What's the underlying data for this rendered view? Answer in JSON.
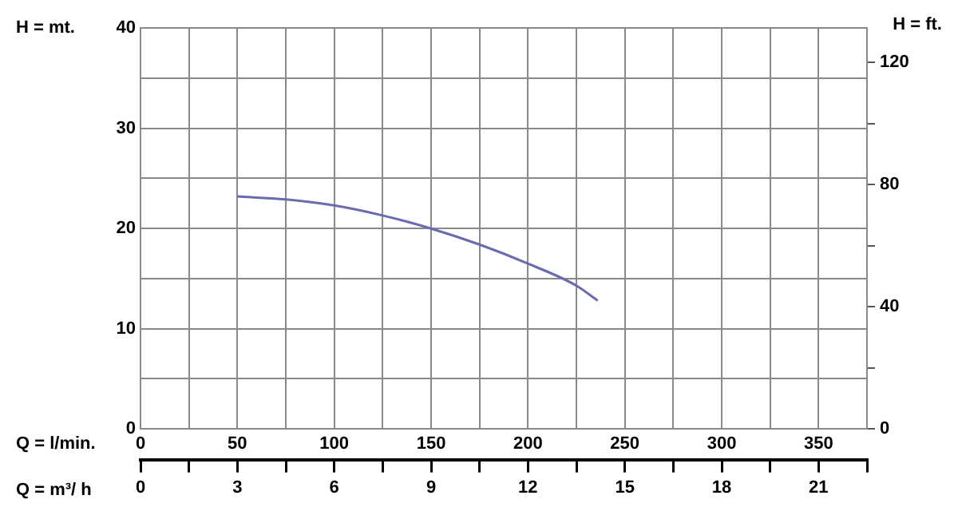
{
  "chart_data": {
    "type": "line",
    "xlabel": "Q = l/min.",
    "x2label": "Q = m³/ h",
    "ylabel": "H = mt.",
    "y2label": "H = ft.",
    "x": [
      50,
      75,
      100,
      125,
      150,
      175,
      200,
      225,
      236
    ],
    "series": [
      {
        "color": "#6a6aae",
        "values": [
          23.2,
          22.9,
          22.3,
          21.3,
          20,
          18.4,
          16.5,
          14.3,
          12.8
        ]
      }
    ],
    "xlim": [
      0,
      375
    ],
    "xticks": [
      0,
      {
        "value": 25,
        "label": null
      },
      50,
      {
        "value": 75,
        "label": null
      },
      100,
      {
        "value": 125,
        "label": null
      },
      150,
      {
        "value": 175,
        "label": null
      },
      200,
      {
        "value": 225,
        "label": null
      },
      250,
      {
        "value": 275,
        "label": null
      },
      300,
      {
        "value": 325,
        "label": null
      },
      350,
      {
        "value": 375,
        "label": null
      }
    ],
    "x2lim": [
      0,
      22.5
    ],
    "x2ticks": [
      0,
      {
        "value": 1.5,
        "label": null
      },
      3,
      {
        "value": 4.5,
        "label": null
      },
      6,
      {
        "value": 7.5,
        "label": null
      },
      9,
      {
        "value": 10.5,
        "label": null
      },
      12,
      {
        "value": 13.5,
        "label": null
      },
      15,
      {
        "value": 16.5,
        "label": null
      },
      18,
      {
        "value": 19.5,
        "label": null
      },
      21,
      {
        "value": 22.5,
        "label": null
      }
    ],
    "ylim": [
      0,
      40
    ],
    "yticks": [
      0,
      {
        "value": 5,
        "label": null
      },
      10,
      {
        "value": 15,
        "label": null
      },
      20,
      {
        "value": 25,
        "label": null
      },
      30,
      {
        "value": 35,
        "label": null
      },
      40
    ],
    "y2lim": [
      0,
      131.2
    ],
    "y2ticks": [
      0,
      {
        "value": 20,
        "label": null
      },
      40,
      {
        "value": 60,
        "label": null
      },
      80,
      {
        "value": 100,
        "label": null
      },
      120
    ],
    "grid": true,
    "legend": false,
    "marker": "none",
    "line_style": "solid"
  }
}
